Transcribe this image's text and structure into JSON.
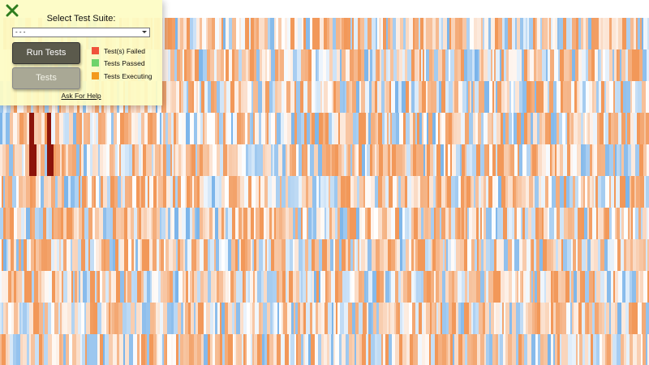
{
  "panel": {
    "heading": "Select Test Suite:",
    "select_option": "- - -",
    "run_button": "Run Tests",
    "tests_button": "Tests",
    "legend": [
      "Test(s) Failed",
      "Tests Passed",
      "Tests Executing"
    ],
    "help_link": "Ask For Help"
  }
}
